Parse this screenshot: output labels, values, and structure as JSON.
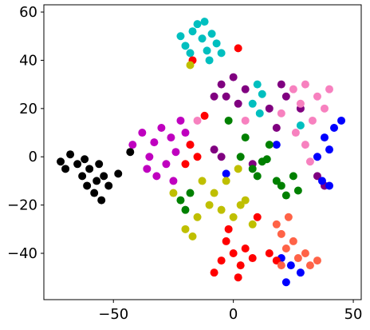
{
  "chart_data": {
    "type": "scatter",
    "xlim": [
      -79,
      53.3
    ],
    "ylim": [
      -59.2,
      63
    ],
    "xticks": [
      {
        "value": -50,
        "label": "−50"
      },
      0,
      50
    ],
    "yticks": [
      {
        "value": -40,
        "label": "−40"
      },
      {
        "value": -20,
        "label": "−20"
      },
      0,
      20,
      40,
      60
    ],
    "series": [
      {
        "color": "#000000",
        "x": [
          -72,
          -70,
          -68,
          -65,
          -63,
          -61,
          -60,
          -58,
          -57,
          -55,
          -54,
          -52,
          -56,
          -62,
          -48,
          -43
        ],
        "y": [
          -2,
          -5,
          1,
          -3,
          -8,
          -12,
          -5,
          -15,
          -10,
          -18,
          -8,
          -12,
          -3,
          -1,
          -7,
          2
        ]
      },
      {
        "color": "#00bfbf",
        "x": [
          -22,
          -20,
          -17,
          -15,
          -13,
          -11,
          -9,
          -7,
          -5,
          -10,
          -18,
          -12,
          10,
          12,
          8,
          11,
          28
        ],
        "y": [
          50,
          46,
          52,
          55,
          49,
          44,
          51,
          47,
          43,
          40,
          43,
          56,
          30,
          26,
          22,
          18,
          13
        ]
      },
      {
        "color": "#bf00bf",
        "x": [
          -38,
          -35,
          -33,
          -30,
          -28,
          -26,
          -24,
          -22,
          -20,
          -36,
          -32,
          -42,
          -18,
          -25
        ],
        "y": [
          10,
          0,
          6,
          12,
          -3,
          8,
          2,
          15,
          10,
          -5,
          -8,
          5,
          5,
          -10
        ]
      },
      {
        "color": "#800080",
        "x": [
          -5,
          0,
          5,
          2,
          -3,
          -8,
          15,
          18,
          20,
          22,
          -8,
          -5,
          8,
          35,
          38,
          28
        ],
        "y": [
          30,
          33,
          28,
          22,
          25,
          25,
          20,
          12,
          30,
          25,
          3,
          0,
          -3,
          -8,
          -12,
          20
        ]
      },
      {
        "color": "#f781bf",
        "x": [
          25,
          28,
          30,
          35,
          33,
          26,
          30,
          35,
          38,
          20,
          5,
          -15,
          32,
          40
        ],
        "y": [
          28,
          22,
          30,
          25,
          15,
          10,
          5,
          0,
          20,
          18,
          15,
          15,
          -2,
          28
        ]
      },
      {
        "color": "#0000ff",
        "x": [
          38,
          42,
          45,
          40,
          35,
          37,
          40,
          20,
          24,
          28,
          22,
          -3,
          18
        ],
        "y": [
          8,
          12,
          15,
          3,
          0,
          -10,
          -12,
          -42,
          -45,
          -48,
          -52,
          -7,
          5
        ]
      },
      {
        "color": "#008000",
        "x": [
          -2,
          5,
          3,
          8,
          10,
          12,
          15,
          20,
          22,
          25,
          27,
          18,
          -22,
          -20,
          -18,
          14
        ],
        "y": [
          15,
          8,
          0,
          -5,
          -8,
          -2,
          5,
          -12,
          -16,
          -8,
          -14,
          -10,
          -18,
          -22,
          -15,
          -1
        ]
      },
      {
        "color": "#ff0000",
        "x": [
          -3,
          0,
          3,
          -5,
          -8,
          2,
          5,
          -2,
          8,
          15,
          18,
          -18,
          -15,
          -20,
          -12,
          -17,
          2,
          10
        ],
        "y": [
          -35,
          -40,
          -45,
          -43,
          -48,
          -50,
          -38,
          -30,
          -42,
          -40,
          -43,
          5,
          0,
          -3,
          17,
          40,
          45,
          -25
        ]
      },
      {
        "color": "#bfbf00",
        "x": [
          -20,
          -15,
          -10,
          -8,
          -5,
          0,
          3,
          5,
          -13,
          2,
          -3,
          8,
          -17,
          -18,
          -25
        ],
        "y": [
          -30,
          -25,
          -20,
          -15,
          -22,
          -25,
          -20,
          -18,
          -10,
          -5,
          -10,
          -28,
          -33,
          38,
          -15
        ]
      },
      {
        "color": "#ff6347",
        "x": [
          18,
          20,
          22,
          25,
          27,
          30,
          32,
          35,
          23,
          20
        ],
        "y": [
          -28,
          -32,
          -38,
          -35,
          -42,
          -40,
          -45,
          -43,
          -25,
          -45
        ]
      }
    ]
  }
}
